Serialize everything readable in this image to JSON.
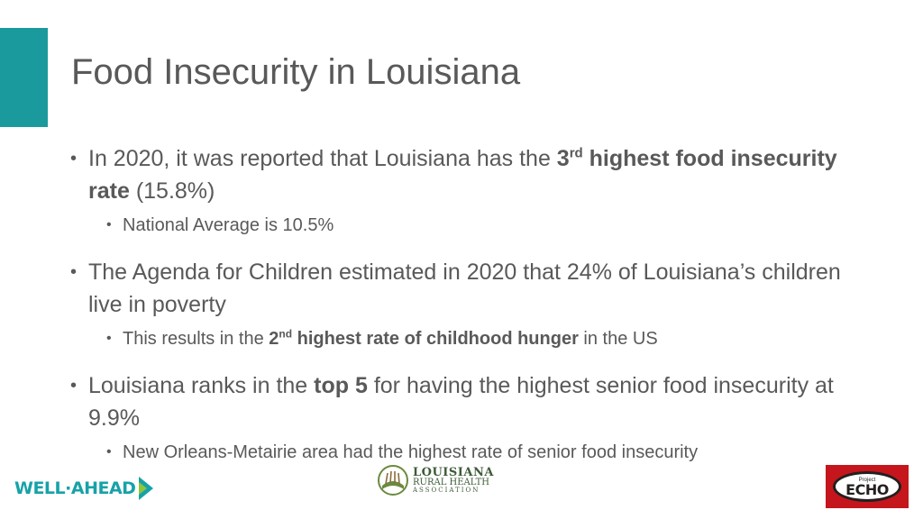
{
  "slide": {
    "title": "Food Insecurity in Louisiana",
    "accent_color": "#1a9a9c"
  },
  "bullets": [
    {
      "pre": "In 2020, it was reported that Louisiana has the ",
      "bold_a": "3",
      "sup": "rd",
      "bold_b": " highest food insecurity rate",
      "post": " (15.8%)",
      "sub": {
        "text": "National Average is 10.5%"
      }
    },
    {
      "text": "The Agenda for Children estimated in 2020 that 24% of Louisiana’s children live in poverty",
      "sub": {
        "pre": "This results in the ",
        "bold_a": "2",
        "sup": "nd",
        "bold_b": " highest rate of childhood hunger",
        "post": " in the US"
      }
    },
    {
      "pre": "Louisiana ranks in the ",
      "bold": "top 5",
      "post": " for having the highest senior food insecurity at 9.9%",
      "sub": {
        "text": "New Orleans-Metairie area had the highest rate of senior food insecurity"
      }
    }
  ],
  "logos": {
    "wellahead": "WELL·AHEAD",
    "lrha_line1": "LOUISIANA",
    "lrha_line2": "RURAL HEALTH",
    "lrha_line3": "ASSOCIATION",
    "echo_small": "Project",
    "echo_text": "ECHO"
  }
}
